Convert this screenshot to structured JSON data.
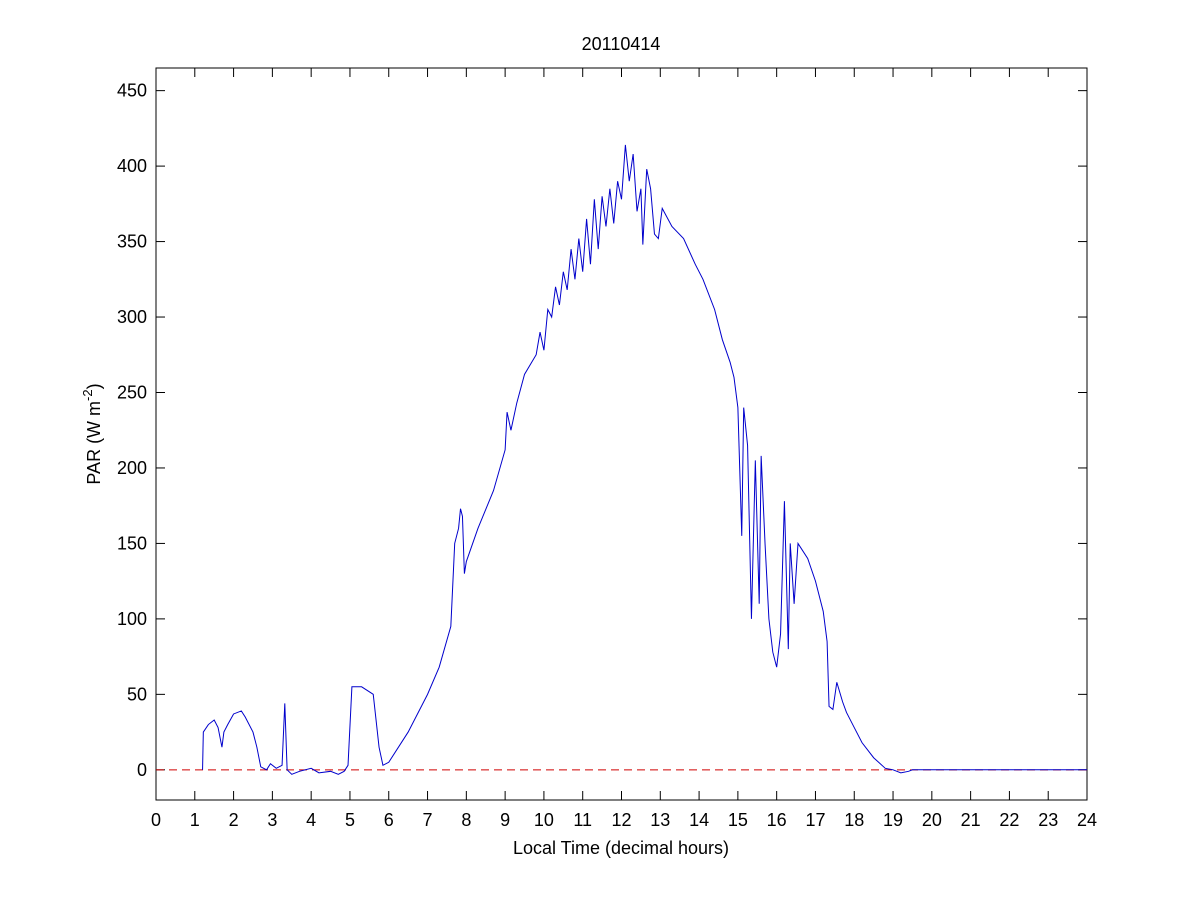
{
  "chart_data": {
    "type": "line",
    "title": "20110414",
    "xlabel": "Local Time (decimal hours)",
    "ylabel": {
      "text": "PAR (W m",
      "superscript": "-2",
      "suffix": ")"
    },
    "xlim": [
      0,
      24
    ],
    "xticks": [
      0,
      1,
      2,
      3,
      4,
      5,
      6,
      7,
      8,
      9,
      10,
      11,
      12,
      13,
      14,
      15,
      16,
      17,
      18,
      19,
      20,
      21,
      22,
      23,
      24
    ],
    "ylim": [
      -20,
      465
    ],
    "yticks": [
      0,
      50,
      100,
      150,
      200,
      250,
      300,
      350,
      400,
      450
    ],
    "grid": false,
    "reference_line": {
      "y": 0,
      "color": "#d00000",
      "dashed": true
    },
    "series": [
      {
        "color": "#0000cc",
        "x": [
          1.2,
          1.22,
          1.35,
          1.5,
          1.6,
          1.7,
          1.75,
          1.85,
          2.0,
          2.2,
          2.3,
          2.5,
          2.6,
          2.7,
          2.85,
          2.95,
          3.1,
          3.25,
          3.32,
          3.38,
          3.5,
          3.7,
          4.0,
          4.2,
          4.5,
          4.7,
          4.85,
          4.95,
          5.05,
          5.3,
          5.6,
          5.75,
          5.85,
          6.0,
          6.5,
          7.0,
          7.3,
          7.6,
          7.7,
          7.8,
          7.85,
          7.9,
          7.95,
          8.0,
          8.3,
          8.7,
          9.0,
          9.05,
          9.15,
          9.3,
          9.5,
          9.8,
          9.9,
          10.0,
          10.1,
          10.2,
          10.3,
          10.4,
          10.5,
          10.6,
          10.7,
          10.8,
          10.9,
          11.0,
          11.1,
          11.2,
          11.3,
          11.4,
          11.5,
          11.6,
          11.7,
          11.8,
          11.9,
          12.0,
          12.1,
          12.2,
          12.3,
          12.4,
          12.5,
          12.55,
          12.65,
          12.75,
          12.85,
          12.95,
          13.05,
          13.3,
          13.6,
          13.9,
          14.1,
          14.4,
          14.6,
          14.8,
          14.9,
          15.0,
          15.1,
          15.15,
          15.25,
          15.35,
          15.45,
          15.55,
          15.6,
          15.7,
          15.8,
          15.9,
          16.0,
          16.1,
          16.2,
          16.3,
          16.35,
          16.45,
          16.55,
          16.8,
          17.0,
          17.2,
          17.3,
          17.35,
          17.45,
          17.55,
          17.7,
          17.8,
          18.0,
          18.2,
          18.5,
          18.8,
          19.0,
          19.2,
          19.4,
          19.5,
          24
        ],
        "values": [
          0,
          25,
          30,
          33,
          28,
          15,
          25,
          30,
          37,
          39,
          35,
          25,
          15,
          2,
          0,
          4,
          1,
          3,
          44,
          0,
          -3,
          -1,
          1,
          -2,
          -1,
          -3,
          -1,
          3,
          55,
          55,
          50,
          15,
          3,
          5,
          25,
          50,
          68,
          95,
          150,
          160,
          173,
          168,
          130,
          138,
          160,
          185,
          212,
          237,
          225,
          243,
          262,
          275,
          290,
          278,
          305,
          300,
          320,
          308,
          330,
          318,
          345,
          325,
          352,
          330,
          365,
          335,
          378,
          345,
          380,
          360,
          385,
          362,
          390,
          378,
          414,
          390,
          408,
          370,
          385,
          348,
          398,
          385,
          355,
          352,
          372,
          360,
          352,
          335,
          325,
          305,
          285,
          270,
          260,
          240,
          155,
          240,
          215,
          100,
          205,
          110,
          208,
          150,
          100,
          78,
          68,
          90,
          178,
          80,
          150,
          110,
          150,
          140,
          125,
          105,
          85,
          42,
          40,
          58,
          45,
          38,
          28,
          18,
          8,
          1,
          0,
          -2,
          -1,
          0,
          0
        ]
      }
    ]
  }
}
